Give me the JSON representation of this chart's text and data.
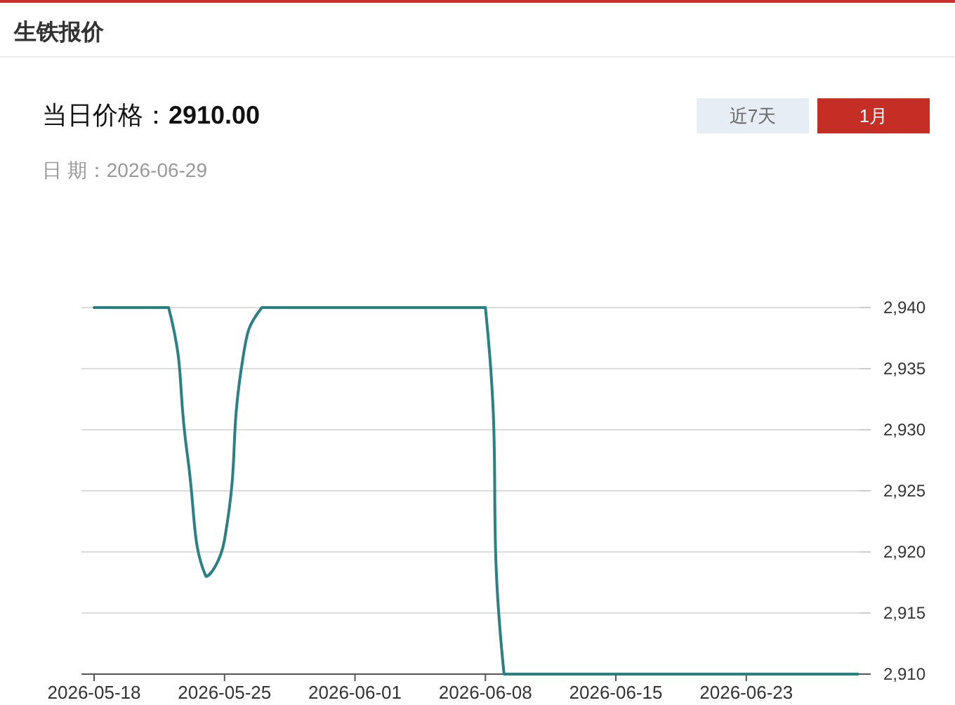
{
  "chart_data": {
    "type": "line",
    "title": "生铁报价",
    "subtitle": "当日价格：2910.00",
    "annotations": [
      "日 期：2026-06-29",
      "近7天",
      "1月"
    ],
    "categories": [
      "2026-05-18",
      null,
      null,
      null,
      null,
      null,
      null,
      "2026-05-25",
      null,
      null,
      null,
      null,
      null,
      null,
      "2026-06-01",
      null,
      null,
      null,
      null,
      null,
      null,
      "2026-06-08",
      null,
      null,
      null,
      null,
      null,
      null,
      "2026-06-15",
      null,
      null,
      null,
      null,
      null,
      null,
      "2026-06-23",
      null,
      null,
      null,
      null,
      null,
      null
    ],
    "series": [
      {
        "color": "#2b8084",
        "values": [
          2940,
          2940,
          2940,
          2940,
          2940,
          2928,
          2918,
          2921,
          2936,
          2940,
          2940,
          2940,
          2940,
          2940,
          2940,
          2940,
          2940,
          2940,
          2940,
          2940,
          2940,
          2940,
          2910,
          2910,
          2910,
          2910,
          2910,
          2910,
          2910,
          2910,
          2910,
          2910,
          2910,
          2910,
          2910,
          2910,
          2910,
          2910,
          2910,
          2910,
          2910,
          2910
        ]
      }
    ],
    "ylim": [
      2910,
      2940
    ],
    "yticks": [
      {
        "value": 2910,
        "label": "2,910"
      },
      {
        "value": 2915,
        "label": "2,915"
      },
      {
        "value": 2920,
        "label": "2,920"
      },
      {
        "value": 2925,
        "label": "2,925"
      },
      {
        "value": 2930,
        "label": "2,930"
      },
      {
        "value": 2935,
        "label": "2,935"
      },
      {
        "value": 2940,
        "label": "2,940"
      }
    ],
    "grid": "y"
  }
}
